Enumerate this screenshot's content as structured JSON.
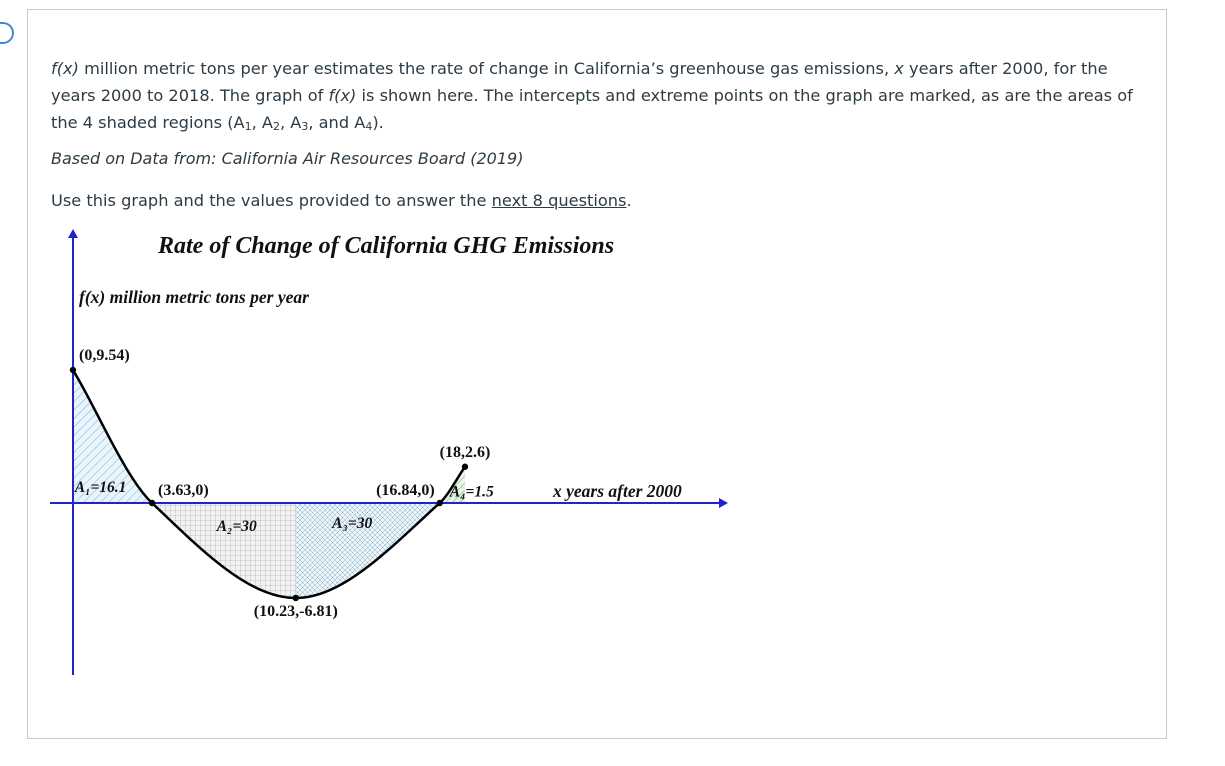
{
  "question": {
    "f_symbol": "f(x)",
    "intro_text": " million metric tons per year estimates the rate of change in California’s greenhouse gas emissions, ",
    "x_symbol": "x",
    "intro_text2": " years after 2000, for the years 2000 to 2018.  The graph of ",
    "f_symbol2": "f(x)",
    "intro_text3": " is shown here.  The intercepts and extreme points on the graph are marked, as are the areas of the 4 shaded regions (A",
    "sub1": "1",
    "sep1": ", A",
    "sub2": "2",
    "sep2": ", A",
    "sub3": "3",
    "sep3": ", and A",
    "sub4": "4",
    "end": ").",
    "source": "Based on Data from: California Air Resources Board (2019)",
    "use_prefix": "Use this graph and the values provided to answer the ",
    "use_link": "next 8 questions",
    "use_suffix": "."
  },
  "chart_data": {
    "type": "area",
    "title": "Rate of Change of California GHG Emissions",
    "ylabel": "f(x) million metric tons per year",
    "xlabel": "x years after 2000",
    "xlim": [
      0,
      18
    ],
    "points": [
      {
        "x": 0,
        "y": 9.54,
        "label": "(0,9.54)"
      },
      {
        "x": 3.63,
        "y": 0,
        "label": "(3.63,0)"
      },
      {
        "x": 10.23,
        "y": -6.81,
        "label": "(10.23,-6.81)"
      },
      {
        "x": 16.84,
        "y": 0,
        "label": "(16.84,0)"
      },
      {
        "x": 18,
        "y": 2.6,
        "label": "(18,2.6)"
      }
    ],
    "regions": [
      {
        "name": "A1",
        "x_range": [
          0,
          3.63
        ],
        "area": 16.1,
        "label": "A₁=16.1",
        "color": "#4aa8d8"
      },
      {
        "name": "A2",
        "x_range": [
          3.63,
          10.23
        ],
        "area": 30,
        "label": "A₂=30",
        "color": "#888888"
      },
      {
        "name": "A3",
        "x_range": [
          10.23,
          16.84
        ],
        "area": 30,
        "label": "A₃=30",
        "color": "#5aa0c8"
      },
      {
        "name": "A4",
        "x_range": [
          16.84,
          18
        ],
        "area": 1.5,
        "label": "A₄=1.5",
        "color": "#44aa44"
      }
    ],
    "axis_color": "#2222cc",
    "curve_color": "#000000"
  }
}
